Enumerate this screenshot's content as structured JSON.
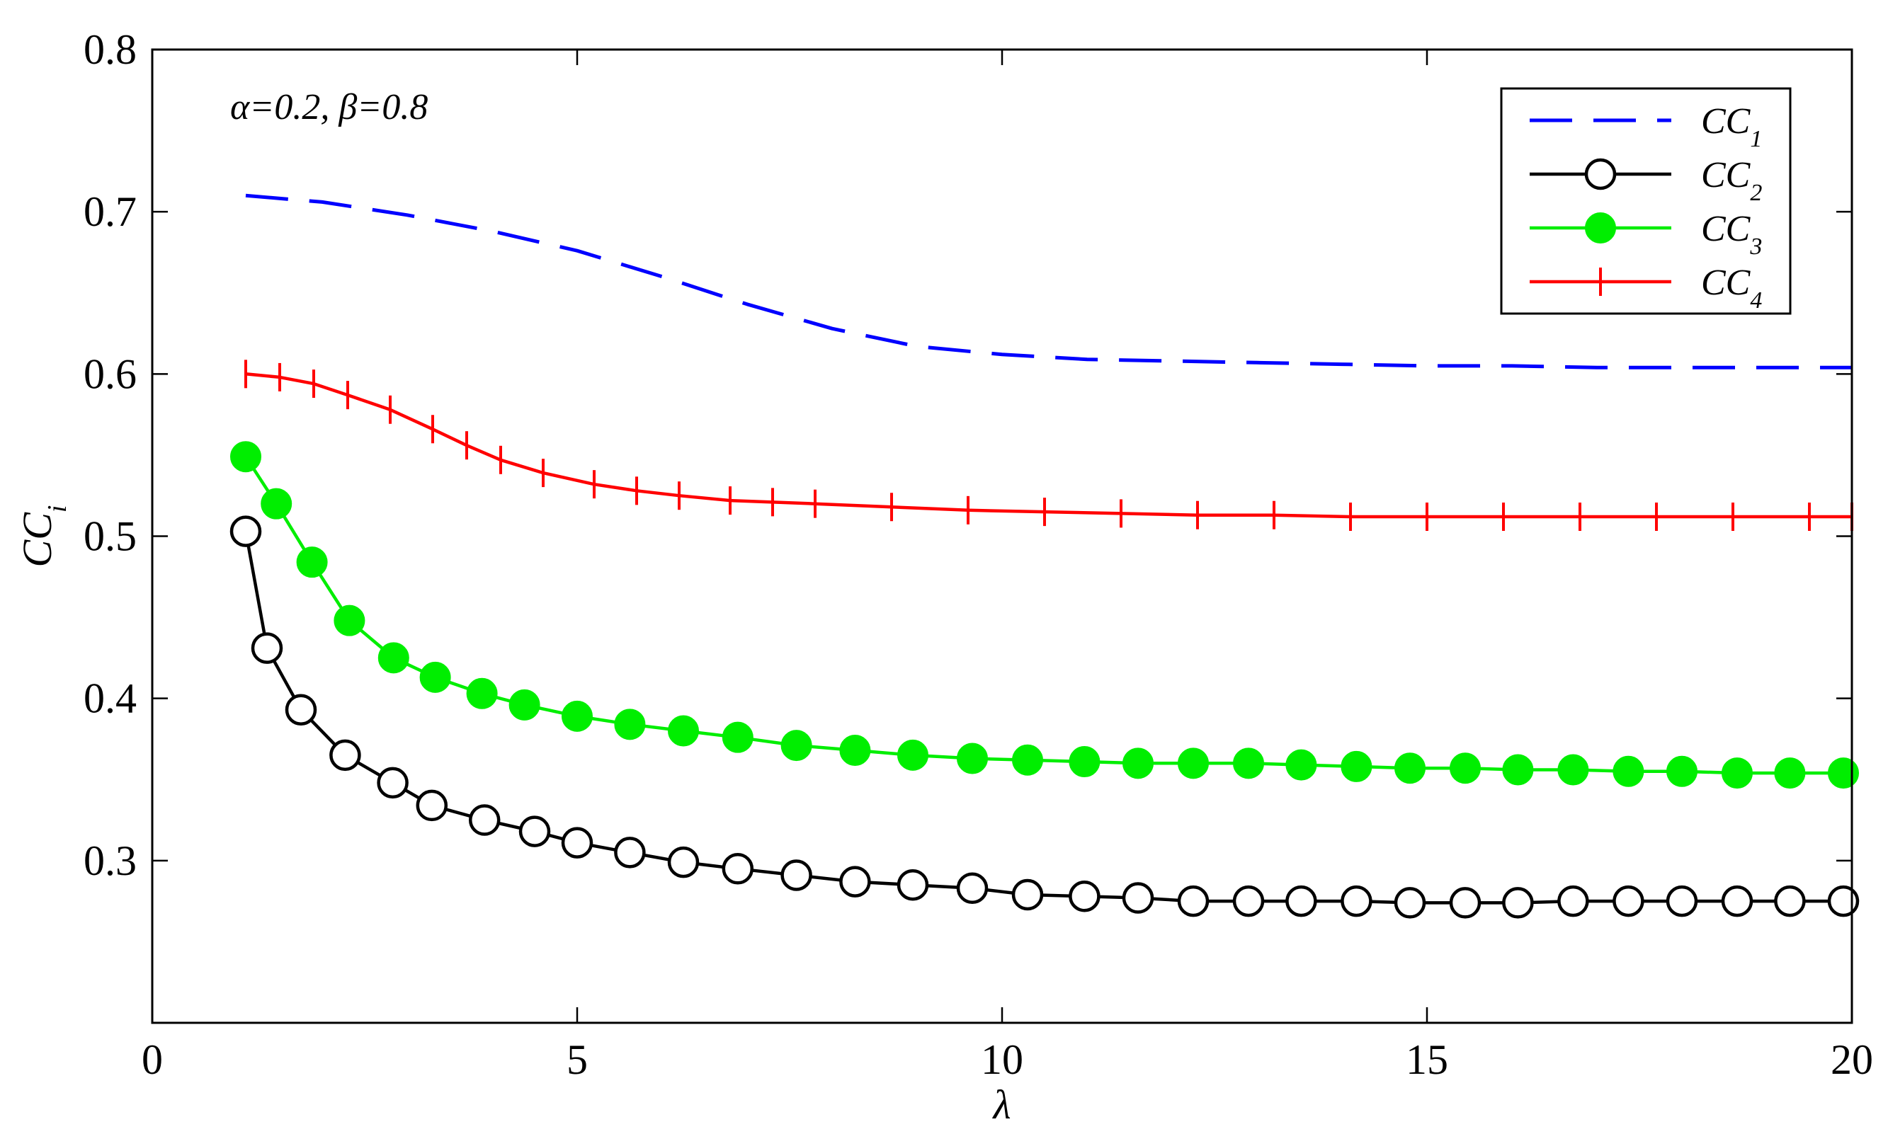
{
  "chart_data": {
    "type": "line",
    "annotation": "α=0.2, β=0.8",
    "xlabel": "λ",
    "ylabel": "CCi",
    "xlim": [
      0,
      20
    ],
    "ylim": [
      0.2,
      0.8
    ],
    "x_ticks": [
      0,
      5,
      10,
      15,
      20
    ],
    "y_ticks": [
      0.3,
      0.4,
      0.5,
      0.6,
      0.7,
      0.8
    ],
    "legend_position": "top-right",
    "grid": false,
    "series": [
      {
        "name": "CC1",
        "color": "#0000ff",
        "style": "dashed",
        "marker": "none",
        "points": [
          [
            1.1,
            0.71
          ],
          [
            2,
            0.706
          ],
          [
            3,
            0.698
          ],
          [
            4,
            0.688
          ],
          [
            5,
            0.676
          ],
          [
            6,
            0.66
          ],
          [
            7,
            0.643
          ],
          [
            8,
            0.628
          ],
          [
            9,
            0.617
          ],
          [
            10,
            0.612
          ],
          [
            11,
            0.609
          ],
          [
            12,
            0.608
          ],
          [
            13,
            0.607
          ],
          [
            14,
            0.606
          ],
          [
            15,
            0.605
          ],
          [
            16,
            0.605
          ],
          [
            17,
            0.604
          ],
          [
            18,
            0.604
          ],
          [
            19,
            0.604
          ],
          [
            20,
            0.604
          ]
        ]
      },
      {
        "name": "CC2",
        "color": "#000000",
        "style": "solid",
        "marker": "open-circle",
        "points": [
          [
            1.1,
            0.503
          ],
          [
            1.35,
            0.431
          ],
          [
            1.75,
            0.393
          ],
          [
            2.27,
            0.365
          ],
          [
            2.83,
            0.348
          ],
          [
            3.29,
            0.334
          ],
          [
            3.91,
            0.325
          ],
          [
            4.5,
            0.318
          ],
          [
            5.0,
            0.311
          ],
          [
            5.62,
            0.305
          ],
          [
            6.25,
            0.299
          ],
          [
            6.89,
            0.295
          ],
          [
            7.58,
            0.291
          ],
          [
            8.27,
            0.287
          ],
          [
            8.95,
            0.285
          ],
          [
            9.65,
            0.283
          ],
          [
            10.3,
            0.279
          ],
          [
            10.97,
            0.278
          ],
          [
            11.6,
            0.277
          ],
          [
            12.25,
            0.275
          ],
          [
            12.9,
            0.275
          ],
          [
            13.52,
            0.275
          ],
          [
            14.17,
            0.275
          ],
          [
            14.8,
            0.274
          ],
          [
            15.45,
            0.274
          ],
          [
            16.07,
            0.274
          ],
          [
            16.72,
            0.275
          ],
          [
            17.37,
            0.275
          ],
          [
            18.0,
            0.275
          ],
          [
            18.65,
            0.275
          ],
          [
            19.27,
            0.275
          ],
          [
            19.9,
            0.275
          ]
        ]
      },
      {
        "name": "CC3",
        "color": "#00ee00",
        "style": "solid",
        "marker": "filled-circle",
        "points": [
          [
            1.1,
            0.549
          ],
          [
            1.46,
            0.52
          ],
          [
            1.88,
            0.484
          ],
          [
            2.32,
            0.448
          ],
          [
            2.84,
            0.425
          ],
          [
            3.33,
            0.413
          ],
          [
            3.88,
            0.403
          ],
          [
            4.38,
            0.396
          ],
          [
            5.0,
            0.389
          ],
          [
            5.62,
            0.384
          ],
          [
            6.25,
            0.38
          ],
          [
            6.89,
            0.376
          ],
          [
            7.58,
            0.371
          ],
          [
            8.27,
            0.368
          ],
          [
            8.95,
            0.365
          ],
          [
            9.65,
            0.363
          ],
          [
            10.3,
            0.362
          ],
          [
            10.97,
            0.361
          ],
          [
            11.6,
            0.36
          ],
          [
            12.25,
            0.36
          ],
          [
            12.9,
            0.36
          ],
          [
            13.52,
            0.359
          ],
          [
            14.17,
            0.358
          ],
          [
            14.8,
            0.357
          ],
          [
            15.45,
            0.357
          ],
          [
            16.07,
            0.356
          ],
          [
            16.72,
            0.356
          ],
          [
            17.37,
            0.355
          ],
          [
            18.0,
            0.355
          ],
          [
            18.65,
            0.354
          ],
          [
            19.27,
            0.354
          ],
          [
            19.9,
            0.354
          ]
        ]
      },
      {
        "name": "CC4",
        "color": "#ff0000",
        "style": "solid",
        "marker": "plus",
        "points": [
          [
            1.1,
            0.6
          ],
          [
            1.5,
            0.598
          ],
          [
            1.9,
            0.594
          ],
          [
            2.3,
            0.587
          ],
          [
            2.8,
            0.578
          ],
          [
            3.3,
            0.566
          ],
          [
            3.7,
            0.556
          ],
          [
            4.1,
            0.547
          ],
          [
            4.6,
            0.539
          ],
          [
            5.2,
            0.532
          ],
          [
            5.7,
            0.528
          ],
          [
            6.2,
            0.525
          ],
          [
            6.8,
            0.522
          ],
          [
            7.3,
            0.521
          ],
          [
            7.8,
            0.52
          ],
          [
            8.7,
            0.518
          ],
          [
            9.6,
            0.516
          ],
          [
            10.5,
            0.515
          ],
          [
            11.4,
            0.514
          ],
          [
            12.3,
            0.513
          ],
          [
            13.2,
            0.513
          ],
          [
            14.1,
            0.512
          ],
          [
            15.0,
            0.512
          ],
          [
            15.9,
            0.512
          ],
          [
            16.8,
            0.512
          ],
          [
            17.7,
            0.512
          ],
          [
            18.6,
            0.512
          ],
          [
            19.5,
            0.512
          ],
          [
            20.0,
            0.512
          ]
        ]
      }
    ]
  }
}
